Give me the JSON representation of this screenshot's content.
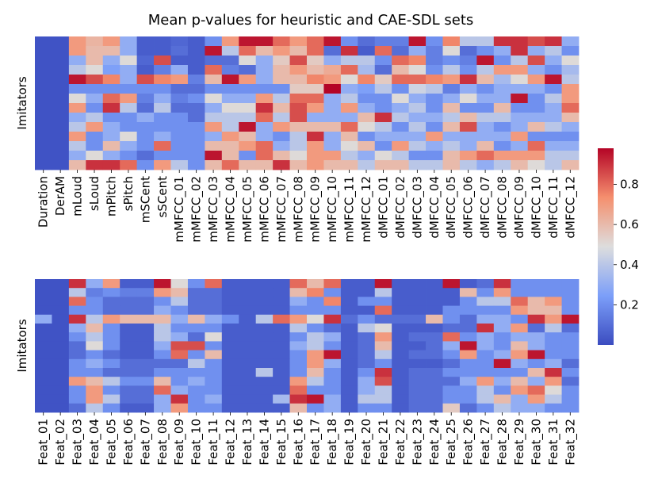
{
  "chart_data": {
    "type": "heatmap",
    "title": "Mean p-values for heuristic and CAE-SDL sets",
    "colormap": "coolwarm",
    "vmin": 0.0,
    "vmax": 0.98,
    "colorbar": {
      "ticks": [
        0.2,
        0.4,
        0.6,
        0.8
      ],
      "tick_labels": [
        "0.2",
        "0.4",
        "0.6",
        "0.8"
      ]
    },
    "panels": [
      {
        "ylabel": "Imitators",
        "columns": [
          "Duration",
          "DerAM",
          "mLoud",
          "sLoud",
          "mPitch",
          "sPitch",
          "mSCent",
          "sSCent",
          "mMFCC_01",
          "mMFCC_02",
          "mMFCC_03",
          "mMFCC_04",
          "mMFCC_05",
          "mMFCC_06",
          "mMFCC_07",
          "mMFCC_08",
          "mMFCC_09",
          "mMFCC_10",
          "mMFCC_11",
          "mMFCC_12",
          "dMFCC_01",
          "dMFCC_02",
          "dMFCC_03",
          "dMFCC_04",
          "dMFCC_05",
          "dMFCC_06",
          "dMFCC_07",
          "dMFCC_08",
          "dMFCC_09",
          "dMFCC_10",
          "dMFCC_11",
          "dMFCC_12"
        ],
        "values": [
          [
            0.02,
            0.02,
            0.7,
            0.62,
            0.7,
            0.3,
            0.05,
            0.05,
            0.08,
            0.05,
            0.2,
            0.7,
            0.95,
            0.95,
            0.8,
            0.7,
            0.8,
            0.95,
            0.2,
            0.1,
            0.15,
            0.15,
            0.95,
            0.2,
            0.75,
            0.4,
            0.4,
            0.9,
            0.9,
            0.85,
            0.9,
            0.3
          ],
          [
            0.02,
            0.02,
            0.7,
            0.6,
            0.6,
            0.3,
            0.05,
            0.05,
            0.1,
            0.05,
            0.95,
            0.4,
            0.8,
            0.6,
            0.7,
            0.6,
            0.8,
            0.1,
            0.9,
            0.05,
            0.8,
            0.1,
            0.3,
            0.15,
            0.5,
            0.1,
            0.2,
            0.3,
            0.9,
            0.3,
            0.4,
            0.2
          ],
          [
            0.02,
            0.02,
            0.3,
            0.6,
            0.3,
            0.5,
            0.08,
            0.85,
            0.05,
            0.05,
            0.1,
            0.1,
            0.5,
            0.3,
            0.55,
            0.85,
            0.55,
            0.3,
            0.4,
            0.4,
            0.2,
            0.8,
            0.75,
            0.15,
            0.2,
            0.15,
            0.95,
            0.2,
            0.4,
            0.85,
            0.3,
            0.5
          ],
          [
            0.02,
            0.02,
            0.4,
            0.5,
            0.25,
            0.3,
            0.05,
            0.15,
            0.3,
            0.05,
            0.8,
            0.15,
            0.1,
            0.3,
            0.6,
            0.7,
            0.6,
            0.65,
            0.8,
            0.35,
            0.1,
            0.6,
            0.5,
            0.2,
            0.4,
            0.2,
            0.4,
            0.7,
            0.7,
            0.3,
            0.2,
            0.35
          ],
          [
            0.02,
            0.02,
            0.95,
            0.85,
            0.75,
            0.3,
            0.85,
            0.75,
            0.7,
            0.15,
            0.6,
            0.95,
            0.7,
            0.3,
            0.6,
            0.6,
            0.75,
            0.7,
            0.5,
            0.75,
            0.55,
            0.8,
            0.8,
            0.75,
            0.7,
            0.9,
            0.6,
            0.35,
            0.5,
            0.7,
            0.95,
            0.4
          ],
          [
            0.02,
            0.02,
            0.2,
            0.2,
            0.2,
            0.2,
            0.2,
            0.2,
            0.1,
            0.1,
            0.2,
            0.2,
            0.2,
            0.2,
            0.2,
            0.55,
            0.55,
            0.98,
            0.3,
            0.25,
            0.4,
            0.2,
            0.45,
            0.4,
            0.15,
            0.3,
            0.2,
            0.3,
            0.3,
            0.3,
            0.2,
            0.7
          ],
          [
            0.02,
            0.02,
            0.5,
            0.3,
            0.8,
            0.7,
            0.15,
            0.3,
            0.15,
            0.2,
            0.5,
            0.3,
            0.3,
            0.7,
            0.4,
            0.8,
            0.8,
            0.3,
            0.4,
            0.2,
            0.2,
            0.5,
            0.3,
            0.2,
            0.3,
            0.5,
            0.3,
            0.3,
            0.95,
            0.2,
            0.4,
            0.7
          ],
          [
            0.02,
            0.02,
            0.7,
            0.2,
            0.9,
            0.4,
            0.1,
            0.4,
            0.1,
            0.1,
            0.3,
            0.5,
            0.5,
            0.9,
            0.6,
            0.85,
            0.7,
            0.3,
            0.7,
            0.3,
            0.2,
            0.3,
            0.4,
            0.2,
            0.6,
            0.2,
            0.2,
            0.6,
            0.2,
            0.2,
            0.3,
            0.8
          ],
          [
            0.02,
            0.02,
            0.3,
            0.4,
            0.2,
            0.2,
            0.3,
            0.2,
            0.2,
            0.1,
            0.4,
            0.4,
            0.4,
            0.8,
            0.4,
            0.85,
            0.3,
            0.3,
            0.3,
            0.6,
            0.9,
            0.4,
            0.3,
            0.3,
            0.4,
            0.6,
            0.4,
            0.4,
            0.3,
            0.3,
            0.3,
            0.6
          ],
          [
            0.02,
            0.02,
            0.4,
            0.7,
            0.3,
            0.2,
            0.2,
            0.2,
            0.2,
            0.2,
            0.7,
            0.4,
            0.95,
            0.3,
            0.7,
            0.6,
            0.6,
            0.6,
            0.8,
            0.5,
            0.4,
            0.2,
            0.4,
            0.2,
            0.6,
            0.85,
            0.3,
            0.2,
            0.3,
            0.6,
            0.4,
            0.3
          ],
          [
            0.02,
            0.02,
            0.7,
            0.2,
            0.3,
            0.5,
            0.2,
            0.3,
            0.2,
            0.2,
            0.3,
            0.7,
            0.6,
            0.3,
            0.2,
            0.4,
            0.9,
            0.3,
            0.6,
            0.2,
            0.3,
            0.3,
            0.3,
            0.7,
            0.3,
            0.3,
            0.3,
            0.3,
            0.7,
            0.2,
            0.2,
            0.2
          ],
          [
            0.02,
            0.02,
            0.4,
            0.2,
            0.6,
            0.3,
            0.2,
            0.8,
            0.2,
            0.2,
            0.6,
            0.6,
            0.7,
            0.8,
            0.3,
            0.4,
            0.7,
            0.3,
            0.5,
            0.6,
            0.2,
            0.7,
            0.4,
            0.3,
            0.4,
            0.3,
            0.6,
            0.2,
            0.3,
            0.8,
            0.3,
            0.3
          ],
          [
            0.02,
            0.02,
            0.3,
            0.5,
            0.3,
            0.2,
            0.1,
            0.2,
            0.2,
            0.2,
            0.95,
            0.6,
            0.2,
            0.8,
            0.6,
            0.5,
            0.7,
            0.7,
            0.4,
            0.3,
            0.5,
            0.4,
            0.2,
            0.2,
            0.6,
            0.7,
            0.8,
            0.7,
            0.7,
            0.7,
            0.4,
            0.4
          ],
          [
            0.02,
            0.02,
            0.6,
            0.9,
            0.9,
            0.8,
            0.2,
            0.7,
            0.4,
            0.2,
            0.6,
            0.8,
            0.6,
            0.6,
            0.9,
            0.6,
            0.7,
            0.6,
            0.6,
            0.4,
            0.6,
            0.6,
            0.4,
            0.4,
            0.6,
            0.4,
            0.3,
            0.4,
            0.6,
            0.5,
            0.4,
            0.6
          ]
        ]
      },
      {
        "ylabel": "Imitators",
        "columns": [
          "Feat_01",
          "Feat_02",
          "Feat_03",
          "Feat_04",
          "Feat_05",
          "Feat_06",
          "Feat_07",
          "Feat_08",
          "Feat_09",
          "Feat_10",
          "Feat_11",
          "Feat_12",
          "Feat_13",
          "Feat_14",
          "Feat_15",
          "Feat_16",
          "Feat_17",
          "Feat_18",
          "Feat_19",
          "Feat_20",
          "Feat_21",
          "Feat_22",
          "Feat_23",
          "Feat_24",
          "Feat_25",
          "Feat_26",
          "Feat_27",
          "Feat_28",
          "Feat_29",
          "Feat_30",
          "Feat_31",
          "Feat_32"
        ],
        "values": [
          [
            0.02,
            0.02,
            0.9,
            0.3,
            0.7,
            0.05,
            0.05,
            0.95,
            0.5,
            0.2,
            0.8,
            0.05,
            0.05,
            0.05,
            0.05,
            0.8,
            0.6,
            0.8,
            0.05,
            0.05,
            0.95,
            0.05,
            0.05,
            0.05,
            0.95,
            0.05,
            0.1,
            0.9,
            0.2,
            0.2,
            0.2,
            0.2
          ],
          [
            0.02,
            0.02,
            0.4,
            0.15,
            0.2,
            0.15,
            0.15,
            0.7,
            0.6,
            0.1,
            0.1,
            0.05,
            0.05,
            0.05,
            0.05,
            0.6,
            0.75,
            0.2,
            0.05,
            0.05,
            0.4,
            0.05,
            0.05,
            0.05,
            0.05,
            0.6,
            0.2,
            0.7,
            0.2,
            0.2,
            0.2,
            0.2
          ],
          [
            0.02,
            0.02,
            0.8,
            0.2,
            0.1,
            0.1,
            0.1,
            0.2,
            0.4,
            0.1,
            0.1,
            0.05,
            0.05,
            0.05,
            0.05,
            0.3,
            0.2,
            0.75,
            0.05,
            0.2,
            0.2,
            0.05,
            0.05,
            0.05,
            0.05,
            0.2,
            0.4,
            0.4,
            0.8,
            0.6,
            0.7,
            0.2
          ],
          [
            0.02,
            0.02,
            0.2,
            0.2,
            0.1,
            0.1,
            0.1,
            0.3,
            0.2,
            0.1,
            0.1,
            0.05,
            0.05,
            0.05,
            0.05,
            0.2,
            0.2,
            0.2,
            0.05,
            0.05,
            0.8,
            0.05,
            0.05,
            0.05,
            0.2,
            0.2,
            0.2,
            0.2,
            0.7,
            0.6,
            0.6,
            0.2
          ],
          [
            0.3,
            0.02,
            0.9,
            0.4,
            0.7,
            0.6,
            0.6,
            0.6,
            0.3,
            0.6,
            0.3,
            0.2,
            0.05,
            0.4,
            0.8,
            0.7,
            0.5,
            0.9,
            0.1,
            0.2,
            0.1,
            0.1,
            0.1,
            0.6,
            0.2,
            0.1,
            0.3,
            0.3,
            0.2,
            0.9,
            0.7,
            0.95
          ],
          [
            0.02,
            0.02,
            0.3,
            0.6,
            0.2,
            0.05,
            0.05,
            0.4,
            0.2,
            0.2,
            0.2,
            0.05,
            0.05,
            0.05,
            0.05,
            0.4,
            0.2,
            0.1,
            0.05,
            0.4,
            0.5,
            0.05,
            0.05,
            0.05,
            0.1,
            0.1,
            0.9,
            0.3,
            0.7,
            0.1,
            0.4,
            0.1
          ],
          [
            0.02,
            0.02,
            0.2,
            0.4,
            0.2,
            0.05,
            0.05,
            0.4,
            0.3,
            0.1,
            0.5,
            0.05,
            0.05,
            0.05,
            0.05,
            0.2,
            0.4,
            0.3,
            0.05,
            0.1,
            0.7,
            0.05,
            0.1,
            0.1,
            0.8,
            0.2,
            0.3,
            0.2,
            0.3,
            0.3,
            0.2,
            0.2
          ],
          [
            0.02,
            0.02,
            0.1,
            0.5,
            0.2,
            0.05,
            0.05,
            0.3,
            0.85,
            0.85,
            0.2,
            0.05,
            0.05,
            0.05,
            0.05,
            0.3,
            0.4,
            0.2,
            0.05,
            0.1,
            0.6,
            0.05,
            0.05,
            0.1,
            0.3,
            0.95,
            0.3,
            0.2,
            0.6,
            0.3,
            0.2,
            0.2
          ],
          [
            0.02,
            0.02,
            0.1,
            0.2,
            0.1,
            0.05,
            0.05,
            0.2,
            0.8,
            0.2,
            0.6,
            0.05,
            0.05,
            0.05,
            0.05,
            0.2,
            0.7,
            0.95,
            0.05,
            0.1,
            0.4,
            0.05,
            0.1,
            0.1,
            0.2,
            0.7,
            0.2,
            0.3,
            0.7,
            0.95,
            0.2,
            0.2
          ],
          [
            0.02,
            0.02,
            0.2,
            0.3,
            0.2,
            0.1,
            0.1,
            0.1,
            0.1,
            0.4,
            0.2,
            0.05,
            0.05,
            0.05,
            0.05,
            0.2,
            0.7,
            0.3,
            0.05,
            0.1,
            0.2,
            0.05,
            0.05,
            0.05,
            0.1,
            0.2,
            0.2,
            0.95,
            0.3,
            0.2,
            0.3,
            0.1
          ],
          [
            0.02,
            0.02,
            0.2,
            0.2,
            0.1,
            0.1,
            0.1,
            0.2,
            0.2,
            0.2,
            0.2,
            0.05,
            0.05,
            0.4,
            0.05,
            0.2,
            0.6,
            0.2,
            0.05,
            0.2,
            0.9,
            0.05,
            0.1,
            0.1,
            0.2,
            0.2,
            0.2,
            0.2,
            0.2,
            0.6,
            0.9,
            0.2
          ],
          [
            0.02,
            0.02,
            0.7,
            0.6,
            0.4,
            0.2,
            0.2,
            0.6,
            0.2,
            0.3,
            0.2,
            0.05,
            0.05,
            0.05,
            0.05,
            0.7,
            0.4,
            0.2,
            0.05,
            0.3,
            0.85,
            0.05,
            0.1,
            0.1,
            0.1,
            0.3,
            0.7,
            0.3,
            0.6,
            0.3,
            0.7,
            0.1
          ],
          [
            0.02,
            0.02,
            0.2,
            0.7,
            0.2,
            0.1,
            0.1,
            0.8,
            0.3,
            0.2,
            0.2,
            0.05,
            0.05,
            0.05,
            0.05,
            0.8,
            0.2,
            0.2,
            0.05,
            0.3,
            0.4,
            0.05,
            0.1,
            0.1,
            0.2,
            0.2,
            0.4,
            0.2,
            0.7,
            0.8,
            0.5,
            0.2
          ],
          [
            0.02,
            0.02,
            0.2,
            0.7,
            0.4,
            0.1,
            0.1,
            0.3,
            0.9,
            0.2,
            0.3,
            0.05,
            0.05,
            0.05,
            0.35,
            0.9,
            0.95,
            0.3,
            0.05,
            0.4,
            0.4,
            0.05,
            0.1,
            0.1,
            0.2,
            0.2,
            0.4,
            0.6,
            0.3,
            0.7,
            0.4,
            0.2
          ],
          [
            0.02,
            0.02,
            0.1,
            0.4,
            0.2,
            0.05,
            0.05,
            0.3,
            0.7,
            0.2,
            0.2,
            0.05,
            0.05,
            0.05,
            0.05,
            0.6,
            0.2,
            0.3,
            0.05,
            0.2,
            0.2,
            0.05,
            0.1,
            0.1,
            0.55,
            0.1,
            0.2,
            0.4,
            0.3,
            0.3,
            0.2,
            0.2
          ]
        ]
      }
    ]
  }
}
